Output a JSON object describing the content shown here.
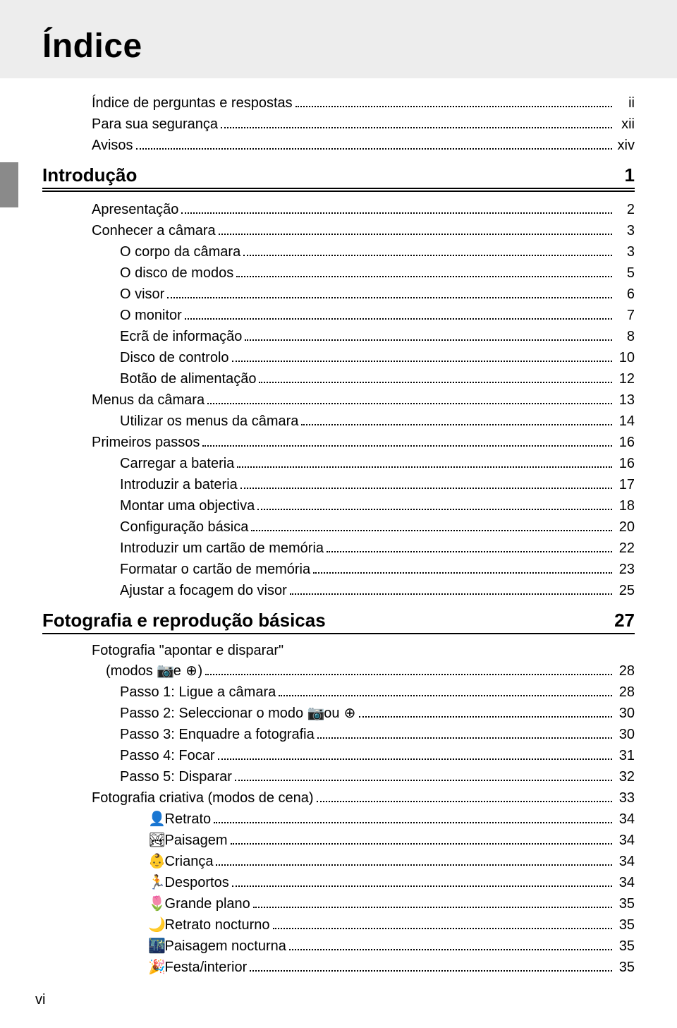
{
  "colors": {
    "header_bg": "#ededed",
    "text": "#000000",
    "sidebar_tab": "#8a8a8a",
    "page_bg": "#ffffff"
  },
  "typography": {
    "title_size_pt": 36,
    "section_size_pt": 20,
    "body_size_pt": 15
  },
  "title": "Índice",
  "prelim": [
    {
      "label": "Índice de perguntas e respostas",
      "page": "ii",
      "indent": 0
    },
    {
      "label": "Para sua segurança",
      "page": "xii",
      "indent": 0
    },
    {
      "label": "Avisos",
      "page": "xiv",
      "indent": 0
    }
  ],
  "chapter1": {
    "heading": "Introdução",
    "page": "1",
    "entries": [
      {
        "label": "Apresentação",
        "page": "2",
        "indent": 0
      },
      {
        "label": "Conhecer a câmara",
        "page": "3",
        "indent": 0
      },
      {
        "label": "O corpo da câmara",
        "page": "3",
        "indent": 1
      },
      {
        "label": "O disco de modos",
        "page": "5",
        "indent": 1
      },
      {
        "label": "O visor",
        "page": "6",
        "indent": 1
      },
      {
        "label": "O monitor",
        "page": "7",
        "indent": 1
      },
      {
        "label": "Ecrã de informação",
        "page": "8",
        "indent": 1
      },
      {
        "label": "Disco de controlo",
        "page": "10",
        "indent": 1
      },
      {
        "label": "Botão de alimentação",
        "page": "12",
        "indent": 1
      },
      {
        "label": "Menus da câmara",
        "page": "13",
        "indent": 0
      },
      {
        "label": "Utilizar os menus da câmara",
        "page": "14",
        "indent": 1
      },
      {
        "label": "Primeiros passos",
        "page": "16",
        "indent": 0
      },
      {
        "label": "Carregar a bateria",
        "page": "16",
        "indent": 1
      },
      {
        "label": "Introduzir a bateria",
        "page": "17",
        "indent": 1
      },
      {
        "label": "Montar uma objectiva",
        "page": "18",
        "indent": 1
      },
      {
        "label": "Configuração básica",
        "page": "20",
        "indent": 1
      },
      {
        "label": "Introduzir um cartão de memória",
        "page": "22",
        "indent": 1
      },
      {
        "label": "Formatar o cartão de memória",
        "page": "23",
        "indent": 1
      },
      {
        "label": "Ajustar a focagem do visor",
        "page": "25",
        "indent": 1
      }
    ]
  },
  "chapter2": {
    "heading": "Fotografia e reprodução básicas",
    "page": "27",
    "lead_label_l1": "Fotografia \"apontar e disparar\"",
    "lead_label_l2_prefix": "(modos ",
    "lead_label_l2_mid": " e ",
    "lead_label_l2_suffix": ")",
    "lead_icon_a": "📷",
    "lead_icon_b": "⊕",
    "lead_page": "28",
    "entries": [
      {
        "label": "Passo 1: Ligue a câmara",
        "page": "28",
        "indent": 1
      },
      {
        "label_pre": "Passo 2: Seleccionar o modo ",
        "icon_a": "📷",
        "mid": " ou ",
        "icon_b": "⊕",
        "page": "30",
        "indent": 1,
        "composite": true
      },
      {
        "label": "Passo 3: Enquadre a fotografia",
        "page": "30",
        "indent": 1
      },
      {
        "label": "Passo 4: Focar",
        "page": "31",
        "indent": 1
      },
      {
        "label": "Passo 5: Disparar",
        "page": "32",
        "indent": 1
      },
      {
        "label": "Fotografia criativa (modos de cena)",
        "page": "33",
        "indent": 0
      },
      {
        "icon": "👤",
        "label": " Retrato",
        "page": "34",
        "indent": 2
      },
      {
        "icon": "🏞",
        "label": " Paisagem",
        "page": "34",
        "indent": 2
      },
      {
        "icon": "👶",
        "label": " Criança",
        "page": "34",
        "indent": 2
      },
      {
        "icon": "🏃",
        "label": " Desportos",
        "page": "34",
        "indent": 2
      },
      {
        "icon": "🌷",
        "label": " Grande plano",
        "page": "35",
        "indent": 2
      },
      {
        "icon": "🌙",
        "label": " Retrato nocturno",
        "page": "35",
        "indent": 2
      },
      {
        "icon": "🌃",
        "label": " Paisagem nocturna",
        "page": "35",
        "indent": 2
      },
      {
        "icon": "🎉",
        "label": " Festa/interior",
        "page": "35",
        "indent": 2
      }
    ]
  },
  "footer_page_number": "vi"
}
